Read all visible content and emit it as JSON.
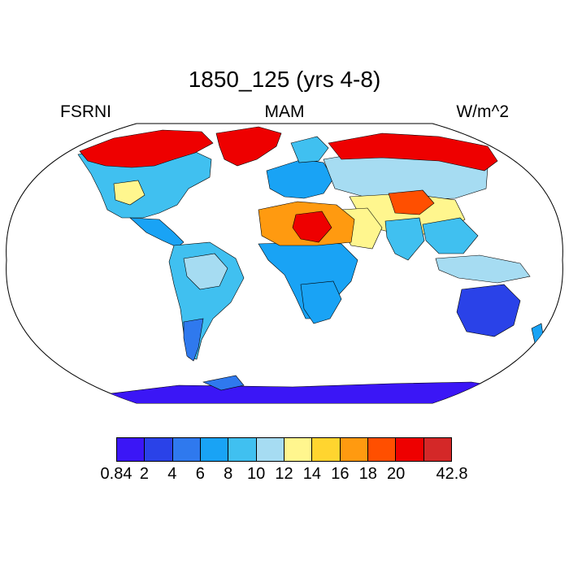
{
  "title": "1850_125 (yrs 4-8)",
  "left_label": "FSRNI",
  "center_label": "MAM",
  "right_label": "W/m^2",
  "colorbar": {
    "colors": [
      "#3b16f6",
      "#2a42e8",
      "#2f79ee",
      "#19a3f5",
      "#40c0f0",
      "#a6dcf2",
      "#fff68e",
      "#ffd52f",
      "#ff9a10",
      "#ff4f00",
      "#ee0000",
      "#d42828"
    ],
    "labels": [
      "0.84",
      "2",
      "4",
      "6",
      "8",
      "10",
      "12",
      "14",
      "16",
      "18",
      "20",
      "42.8"
    ],
    "label_edges": [
      0,
      1,
      2,
      3,
      4,
      5,
      6,
      7,
      8,
      9,
      10,
      12
    ]
  },
  "map": {
    "projection": "robinson",
    "region_values": {
      "north_america": 8,
      "canada_arctic": 20,
      "greenland": 20,
      "usa_southwest": 12,
      "central_america": 6,
      "south_america": 9,
      "amazon": 11,
      "patagonia": 4,
      "europe": 6,
      "scandinavia": 8,
      "siberia": 20,
      "russia_central": 10,
      "sahara": 16,
      "sahara_core": 20,
      "africa_central": 7,
      "africa_south": 6,
      "arabia": 12,
      "central_asia": 12,
      "tibet_hotspot": 18,
      "india": 8,
      "southeast_asia": 9,
      "indonesia": 10,
      "australia": 3,
      "new_zealand": 6,
      "antarctica": 1.5,
      "antarctic_peninsula": 5
    }
  }
}
